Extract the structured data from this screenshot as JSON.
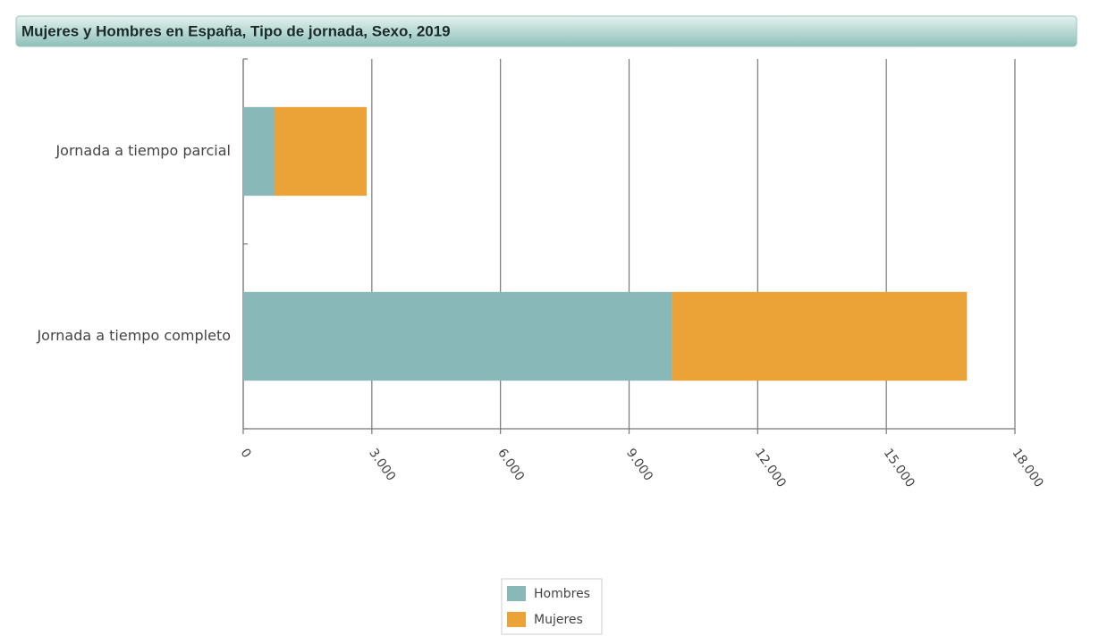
{
  "chart_data": {
    "type": "bar",
    "orientation": "horizontal",
    "stacked": true,
    "title": "Mujeres y Hombres en España, Tipo de jornada, Sexo, 2019",
    "categories": [
      "Jornada a tiempo parcial",
      "Jornada a tiempo completo"
    ],
    "series": [
      {
        "name": "Hombres",
        "color": "#88b8b8",
        "values": [
          730,
          10000
        ]
      },
      {
        "name": "Mujeres",
        "color": "#eba236",
        "values": [
          2150,
          6880
        ]
      }
    ],
    "xlim": [
      0,
      18000
    ],
    "xticks": [
      0,
      {
        "value": 3000,
        "label": "3.000"
      },
      {
        "value": 6000,
        "label": "6.000"
      },
      {
        "value": 9000,
        "label": "9.000"
      },
      {
        "value": 12000,
        "label": "12.000"
      },
      {
        "value": 15000,
        "label": "15.000"
      },
      {
        "value": 18000,
        "label": "18.000"
      }
    ],
    "grid": true,
    "legend": "bottom"
  }
}
